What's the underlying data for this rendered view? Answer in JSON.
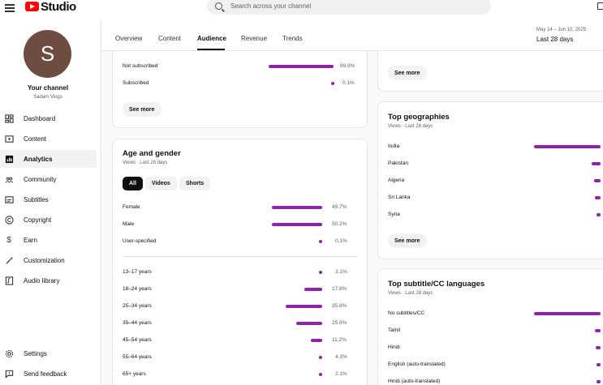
{
  "app": {
    "title": "Studio"
  },
  "search": {
    "placeholder": "Search across your channel"
  },
  "channel": {
    "avatar_letter": "S",
    "title": "Your channel",
    "name": "Sadam Vlogs"
  },
  "sidebar": {
    "items": [
      {
        "label": "Dashboard",
        "icon": "dashboard-icon"
      },
      {
        "label": "Content",
        "icon": "content-icon"
      },
      {
        "label": "Analytics",
        "icon": "analytics-icon",
        "active": true
      },
      {
        "label": "Community",
        "icon": "community-icon"
      },
      {
        "label": "Subtitles",
        "icon": "subtitles-icon"
      },
      {
        "label": "Copyright",
        "icon": "copyright-icon"
      },
      {
        "label": "Earn",
        "icon": "earn-icon"
      },
      {
        "label": "Customization",
        "icon": "customization-icon"
      },
      {
        "label": "Audio library",
        "icon": "audio-library-icon"
      }
    ],
    "footer": [
      {
        "label": "Settings",
        "icon": "settings-icon"
      },
      {
        "label": "Send feedback",
        "icon": "feedback-icon"
      }
    ]
  },
  "tabs": [
    "Overview",
    "Content",
    "Audience",
    "Revenue",
    "Trends"
  ],
  "active_tab": "Audience",
  "date": {
    "range": "May 14 – Jun 10, 2025",
    "label": "Last 28 days"
  },
  "subscription": {
    "rows": [
      {
        "label": "Not subscribed",
        "value": "99.9%",
        "fraction": 0.999
      },
      {
        "label": "Subscribed",
        "value": "0.1%",
        "fraction": 0.001
      }
    ],
    "see_more": "See more"
  },
  "age_gender": {
    "title": "Age and gender",
    "subtitle": "Views · Last 28 days",
    "chips": [
      "All",
      "Videos",
      "Shorts"
    ],
    "gender": [
      {
        "label": "Female",
        "value": "49.7%",
        "fraction": 0.497
      },
      {
        "label": "Male",
        "value": "50.2%",
        "fraction": 0.502
      },
      {
        "label": "User-specified",
        "value": "0.1%",
        "fraction": 0.001
      }
    ],
    "age": [
      {
        "label": "13–17 years",
        "value": "3.1%",
        "fraction": 0.031
      },
      {
        "label": "18–24 years",
        "value": "17.8%",
        "fraction": 0.178
      },
      {
        "label": "25–34 years",
        "value": "35.8%",
        "fraction": 0.358
      },
      {
        "label": "35–44 years",
        "value": "25.8%",
        "fraction": 0.258
      },
      {
        "label": "45–54 years",
        "value": "11.2%",
        "fraction": 0.112
      },
      {
        "label": "55–64 years",
        "value": "4.3%",
        "fraction": 0.043
      },
      {
        "label": "65+ years",
        "value": "2.1%",
        "fraction": 0.021
      }
    ]
  },
  "right_top": {
    "see_more": "See more"
  },
  "geographies": {
    "title": "Top geographies",
    "subtitle": "Views · Last 28 days",
    "rows": [
      {
        "label": "India",
        "fraction": 0.9
      },
      {
        "label": "Pakistan",
        "fraction": 0.06
      },
      {
        "label": "Algeria",
        "fraction": 0.02
      },
      {
        "label": "Sri Lanka",
        "fraction": 0.015
      },
      {
        "label": "Syria",
        "fraction": 0.01
      }
    ],
    "see_more": "See more"
  },
  "subtitle_languages": {
    "title": "Top subtitle/CC languages",
    "subtitle": "Views · Last 28 days",
    "rows": [
      {
        "label": "No subtitles/CC",
        "fraction": 0.9
      },
      {
        "label": "Tamil",
        "fraction": 0.02
      },
      {
        "label": "Hindi",
        "fraction": 0.015
      },
      {
        "label": "English (auto-translated)",
        "fraction": 0.012
      },
      {
        "label": "Hindi (auto-translated)",
        "fraction": 0.01
      }
    ]
  },
  "colors": {
    "accent": "#8e24aa",
    "logo": "#ff0000",
    "avatar": "#6d4c41"
  }
}
